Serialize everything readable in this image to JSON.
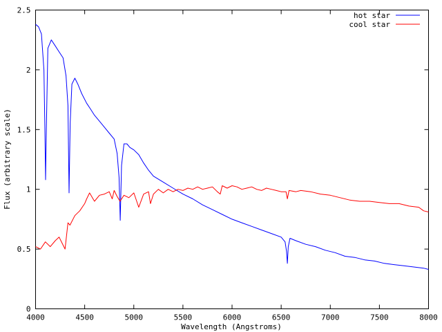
{
  "chart_data": {
    "type": "line",
    "xlabel": "Wavelength (Angstroms)",
    "ylabel": "Flux (arbitrary scale)",
    "xlim": [
      4000,
      8000
    ],
    "ylim": [
      0,
      2.5
    ],
    "xticks": [
      4000,
      4500,
      5000,
      5500,
      6000,
      6500,
      7000,
      7500,
      8000
    ],
    "xtick_labels": [
      "4000",
      "4500",
      "5000",
      "5500",
      "6000",
      "6500",
      "7000",
      "7500",
      "8000"
    ],
    "yticks": [
      0,
      0.5,
      1,
      1.5,
      2,
      2.5
    ],
    "ytick_labels": [
      "0",
      "0.5",
      "1",
      "1.5",
      "2",
      "2.5"
    ],
    "grid": false,
    "legend_position": "top-right",
    "series": [
      {
        "name": "hot star",
        "color": "#0000ff",
        "x": [
          4000,
          4030,
          4060,
          4085,
          4095,
          4102,
          4110,
          4125,
          4160,
          4200,
          4240,
          4280,
          4310,
          4330,
          4341,
          4352,
          4370,
          4400,
          4430,
          4470,
          4520,
          4560,
          4600,
          4650,
          4700,
          4750,
          4800,
          4830,
          4850,
          4862,
          4875,
          4900,
          4930,
          4960,
          5000,
          5050,
          5100,
          5150,
          5200,
          5300,
          5400,
          5500,
          5600,
          5700,
          5800,
          5900,
          6000,
          6100,
          6200,
          6300,
          6400,
          6500,
          6540,
          6555,
          6563,
          6572,
          6590,
          6650,
          6750,
          6850,
          6950,
          7050,
          7150,
          7250,
          7350,
          7450,
          7550,
          7650,
          7750,
          7850,
          7950,
          8000
        ],
        "y": [
          2.38,
          2.36,
          2.3,
          2.0,
          1.5,
          1.08,
          1.5,
          2.18,
          2.25,
          2.2,
          2.15,
          2.1,
          1.95,
          1.7,
          0.97,
          1.55,
          1.88,
          1.93,
          1.88,
          1.8,
          1.72,
          1.67,
          1.62,
          1.57,
          1.52,
          1.47,
          1.42,
          1.3,
          1.1,
          0.74,
          1.2,
          1.38,
          1.38,
          1.35,
          1.33,
          1.29,
          1.22,
          1.16,
          1.11,
          1.06,
          1.01,
          0.96,
          0.92,
          0.87,
          0.83,
          0.79,
          0.75,
          0.72,
          0.69,
          0.66,
          0.63,
          0.6,
          0.56,
          0.48,
          0.38,
          0.52,
          0.59,
          0.57,
          0.54,
          0.52,
          0.49,
          0.47,
          0.44,
          0.43,
          0.41,
          0.4,
          0.38,
          0.37,
          0.36,
          0.35,
          0.34,
          0.33
        ]
      },
      {
        "name": "cool star",
        "color": "#ff0000",
        "x": [
          4000,
          4050,
          4100,
          4150,
          4200,
          4240,
          4270,
          4300,
          4330,
          4350,
          4400,
          4450,
          4500,
          4520,
          4550,
          4600,
          4650,
          4700,
          4750,
          4780,
          4800,
          4830,
          4860,
          4900,
          4950,
          5000,
          5050,
          5100,
          5150,
          5170,
          5200,
          5250,
          5300,
          5350,
          5400,
          5450,
          5500,
          5550,
          5600,
          5650,
          5700,
          5750,
          5800,
          5850,
          5880,
          5900,
          5950,
          6000,
          6050,
          6100,
          6150,
          6200,
          6250,
          6300,
          6350,
          6400,
          6450,
          6500,
          6550,
          6563,
          6580,
          6650,
          6700,
          6800,
          6900,
          7000,
          7100,
          7200,
          7300,
          7400,
          7500,
          7600,
          7700,
          7800,
          7900,
          7950,
          8000
        ],
        "y": [
          0.52,
          0.5,
          0.56,
          0.52,
          0.57,
          0.6,
          0.55,
          0.5,
          0.72,
          0.7,
          0.78,
          0.82,
          0.88,
          0.92,
          0.97,
          0.9,
          0.95,
          0.96,
          0.98,
          0.92,
          0.99,
          0.94,
          0.9,
          0.95,
          0.93,
          0.97,
          0.85,
          0.96,
          0.98,
          0.88,
          0.96,
          1.0,
          0.97,
          1.0,
          0.98,
          1.0,
          0.99,
          1.01,
          1.0,
          1.02,
          1.0,
          1.01,
          1.02,
          0.98,
          0.96,
          1.03,
          1.01,
          1.03,
          1.02,
          1.0,
          1.01,
          1.02,
          1.0,
          0.99,
          1.01,
          1.0,
          0.99,
          0.98,
          0.98,
          0.92,
          0.99,
          0.98,
          0.99,
          0.98,
          0.96,
          0.95,
          0.93,
          0.91,
          0.9,
          0.9,
          0.89,
          0.88,
          0.88,
          0.86,
          0.85,
          0.82,
          0.81
        ]
      }
    ]
  }
}
